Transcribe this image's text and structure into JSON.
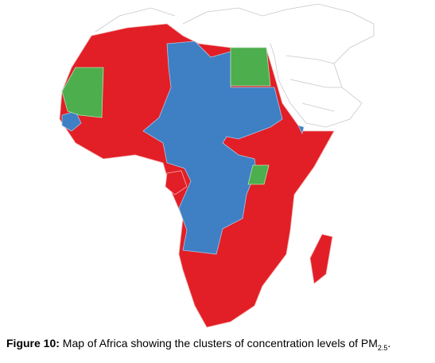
{
  "caption": {
    "label": "Figure 10:",
    "text": "Map of Africa showing the clusters of concentration levels of PM",
    "subscript": "2.5",
    "end": "."
  }
}
